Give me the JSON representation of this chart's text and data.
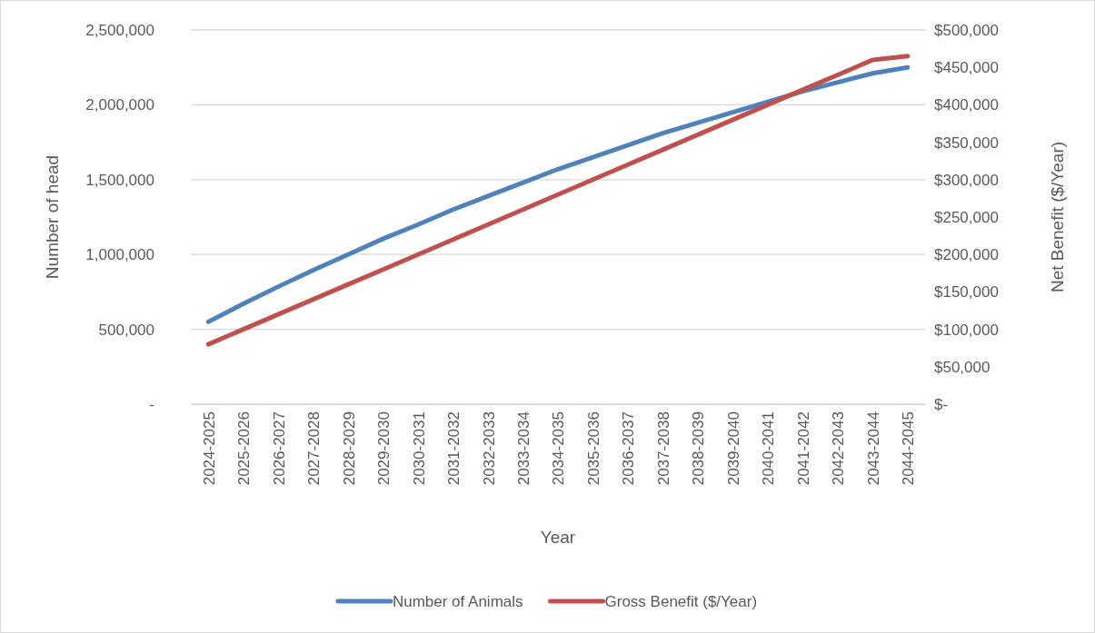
{
  "chart_data": {
    "type": "line",
    "xlabel": "Year",
    "ylabel": "Number of head",
    "y2label": "Net Benefit ($/Year)",
    "categories": [
      "2024-2025",
      "2025-2026",
      "2026-2027",
      "2027-2028",
      "2028-2029",
      "2029-2030",
      "2030-2031",
      "2031-2032",
      "2032-2033",
      "2033-2034",
      "2034-2035",
      "2035-2036",
      "2036-2037",
      "2037-2038",
      "2038-2039",
      "2039-2040",
      "2040-2041",
      "2041-2042",
      "2042-2043",
      "2043-2044",
      "2044-2045"
    ],
    "series": [
      {
        "name": "Number of Animals",
        "color": "#4f81bd",
        "values": [
          550000,
          670000,
          785000,
          895000,
          1000000,
          1105000,
          1200000,
          1300000,
          1390000,
          1480000,
          1570000,
          1650000,
          1730000,
          1810000,
          1880000,
          1950000,
          2020000,
          2090000,
          2150000,
          2210000,
          2250000
        ]
      },
      {
        "name": "Gross Benefit ($/Year)",
        "color": "#c0504d",
        "axis": "y2",
        "values": [
          80000,
          100000,
          120000,
          140000,
          160000,
          180000,
          200000,
          220000,
          240000,
          260000,
          280000,
          300000,
          320000,
          340000,
          360000,
          380000,
          400000,
          420000,
          440000,
          460000,
          465000
        ]
      }
    ],
    "ylim": [
      0,
      2500000
    ],
    "yticks": [
      {
        "value": 0,
        "label": "-"
      },
      {
        "value": 500000,
        "label": "500,000"
      },
      {
        "value": 1000000,
        "label": "1,000,000"
      },
      {
        "value": 1500000,
        "label": "1,500,000"
      },
      {
        "value": 2000000,
        "label": "2,000,000"
      },
      {
        "value": 2500000,
        "label": "2,500,000"
      }
    ],
    "y2lim": [
      0,
      500000
    ],
    "y2ticks": [
      {
        "value": 0,
        "label": "$-"
      },
      {
        "value": 50000,
        "label": "$50,000"
      },
      {
        "value": 100000,
        "label": "$100,000"
      },
      {
        "value": 150000,
        "label": "$150,000"
      },
      {
        "value": 200000,
        "label": "$200,000"
      },
      {
        "value": 250000,
        "label": "$250,000"
      },
      {
        "value": 300000,
        "label": "$300,000"
      },
      {
        "value": 350000,
        "label": "$350,000"
      },
      {
        "value": 400000,
        "label": "$400,000"
      },
      {
        "value": 450000,
        "label": "$450,000"
      },
      {
        "value": 500000,
        "label": "$500,000"
      }
    ],
    "grid": "y",
    "legend": "bottom",
    "marker": "none",
    "line_style": "solid"
  }
}
